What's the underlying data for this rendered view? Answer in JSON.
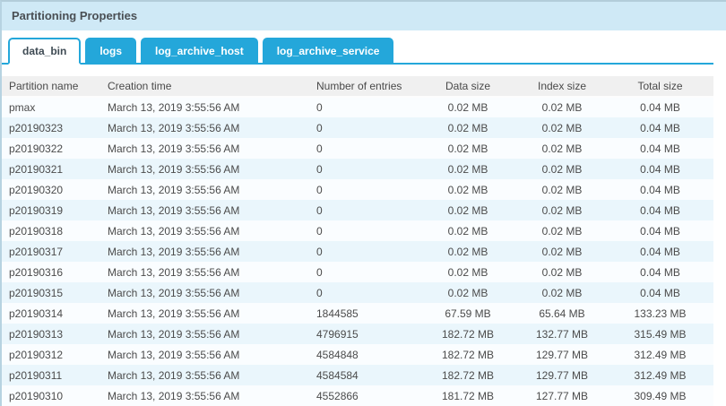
{
  "panel": {
    "title": "Partitioning Properties"
  },
  "colors": {
    "accent": "#24a7da",
    "titlebar_bg": "#cfe9f6",
    "header_bg": "#f0f0f0",
    "row_bg": "#fafdff",
    "row_alt_bg": "#eaf6fc"
  },
  "tabs": [
    {
      "label": "data_bin",
      "active": true
    },
    {
      "label": "logs",
      "active": false
    },
    {
      "label": "log_archive_host",
      "active": false
    },
    {
      "label": "log_archive_service",
      "active": false
    }
  ],
  "table": {
    "columns": [
      "Partition name",
      "Creation time",
      "Number of entries",
      "Data size",
      "Index size",
      "Total size"
    ],
    "col_keys": [
      "partition-name",
      "creation-time",
      "number-of-entries",
      "data-size",
      "index-size",
      "total-size"
    ],
    "rows": [
      [
        "pmax",
        "March 13, 2019 3:55:56 AM",
        "0",
        "0.02 MB",
        "0.02 MB",
        "0.04 MB"
      ],
      [
        "p20190323",
        "March 13, 2019 3:55:56 AM",
        "0",
        "0.02 MB",
        "0.02 MB",
        "0.04 MB"
      ],
      [
        "p20190322",
        "March 13, 2019 3:55:56 AM",
        "0",
        "0.02 MB",
        "0.02 MB",
        "0.04 MB"
      ],
      [
        "p20190321",
        "March 13, 2019 3:55:56 AM",
        "0",
        "0.02 MB",
        "0.02 MB",
        "0.04 MB"
      ],
      [
        "p20190320",
        "March 13, 2019 3:55:56 AM",
        "0",
        "0.02 MB",
        "0.02 MB",
        "0.04 MB"
      ],
      [
        "p20190319",
        "March 13, 2019 3:55:56 AM",
        "0",
        "0.02 MB",
        "0.02 MB",
        "0.04 MB"
      ],
      [
        "p20190318",
        "March 13, 2019 3:55:56 AM",
        "0",
        "0.02 MB",
        "0.02 MB",
        "0.04 MB"
      ],
      [
        "p20190317",
        "March 13, 2019 3:55:56 AM",
        "0",
        "0.02 MB",
        "0.02 MB",
        "0.04 MB"
      ],
      [
        "p20190316",
        "March 13, 2019 3:55:56 AM",
        "0",
        "0.02 MB",
        "0.02 MB",
        "0.04 MB"
      ],
      [
        "p20190315",
        "March 13, 2019 3:55:56 AM",
        "0",
        "0.02 MB",
        "0.02 MB",
        "0.04 MB"
      ],
      [
        "p20190314",
        "March 13, 2019 3:55:56 AM",
        "1844585",
        "67.59 MB",
        "65.64 MB",
        "133.23 MB"
      ],
      [
        "p20190313",
        "March 13, 2019 3:55:56 AM",
        "4796915",
        "182.72 MB",
        "132.77 MB",
        "315.49 MB"
      ],
      [
        "p20190312",
        "March 13, 2019 3:55:56 AM",
        "4584848",
        "182.72 MB",
        "129.77 MB",
        "312.49 MB"
      ],
      [
        "p20190311",
        "March 13, 2019 3:55:56 AM",
        "4584584",
        "182.72 MB",
        "129.77 MB",
        "312.49 MB"
      ],
      [
        "p20190310",
        "March 13, 2019 3:55:56 AM",
        "4552866",
        "181.72 MB",
        "127.77 MB",
        "309.49 MB"
      ]
    ]
  }
}
